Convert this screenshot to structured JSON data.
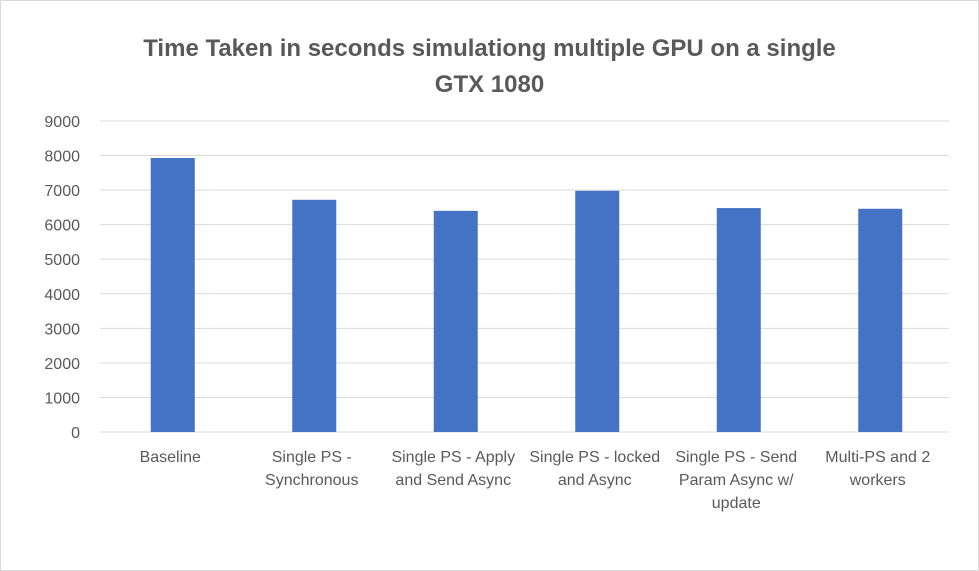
{
  "chart_data": {
    "type": "bar",
    "title_lines": [
      "Time Taken in seconds simulationg multiple GPU on a single",
      "GTX 1080"
    ],
    "categories": [
      [
        "Baseline"
      ],
      [
        "Single PS -",
        "Synchronous"
      ],
      [
        "Single PS - Apply",
        "and Send Async"
      ],
      [
        "Single PS - locked",
        "and Async"
      ],
      [
        "Single PS - Send",
        "Param Async w/",
        "update"
      ],
      [
        "Multi-PS and 2",
        "workers"
      ]
    ],
    "series": [
      {
        "values": [
          7930,
          6720,
          6400,
          6980,
          6480,
          6460
        ]
      }
    ],
    "ylim": [
      0,
      9000
    ],
    "yticks": [
      "0",
      "1000",
      "2000",
      "3000",
      "4000",
      "5000",
      "6000",
      "7000",
      "8000",
      "9000"
    ],
    "grid": true,
    "bar_color": "#4472c4",
    "grid_color": "#d9d9d9"
  }
}
